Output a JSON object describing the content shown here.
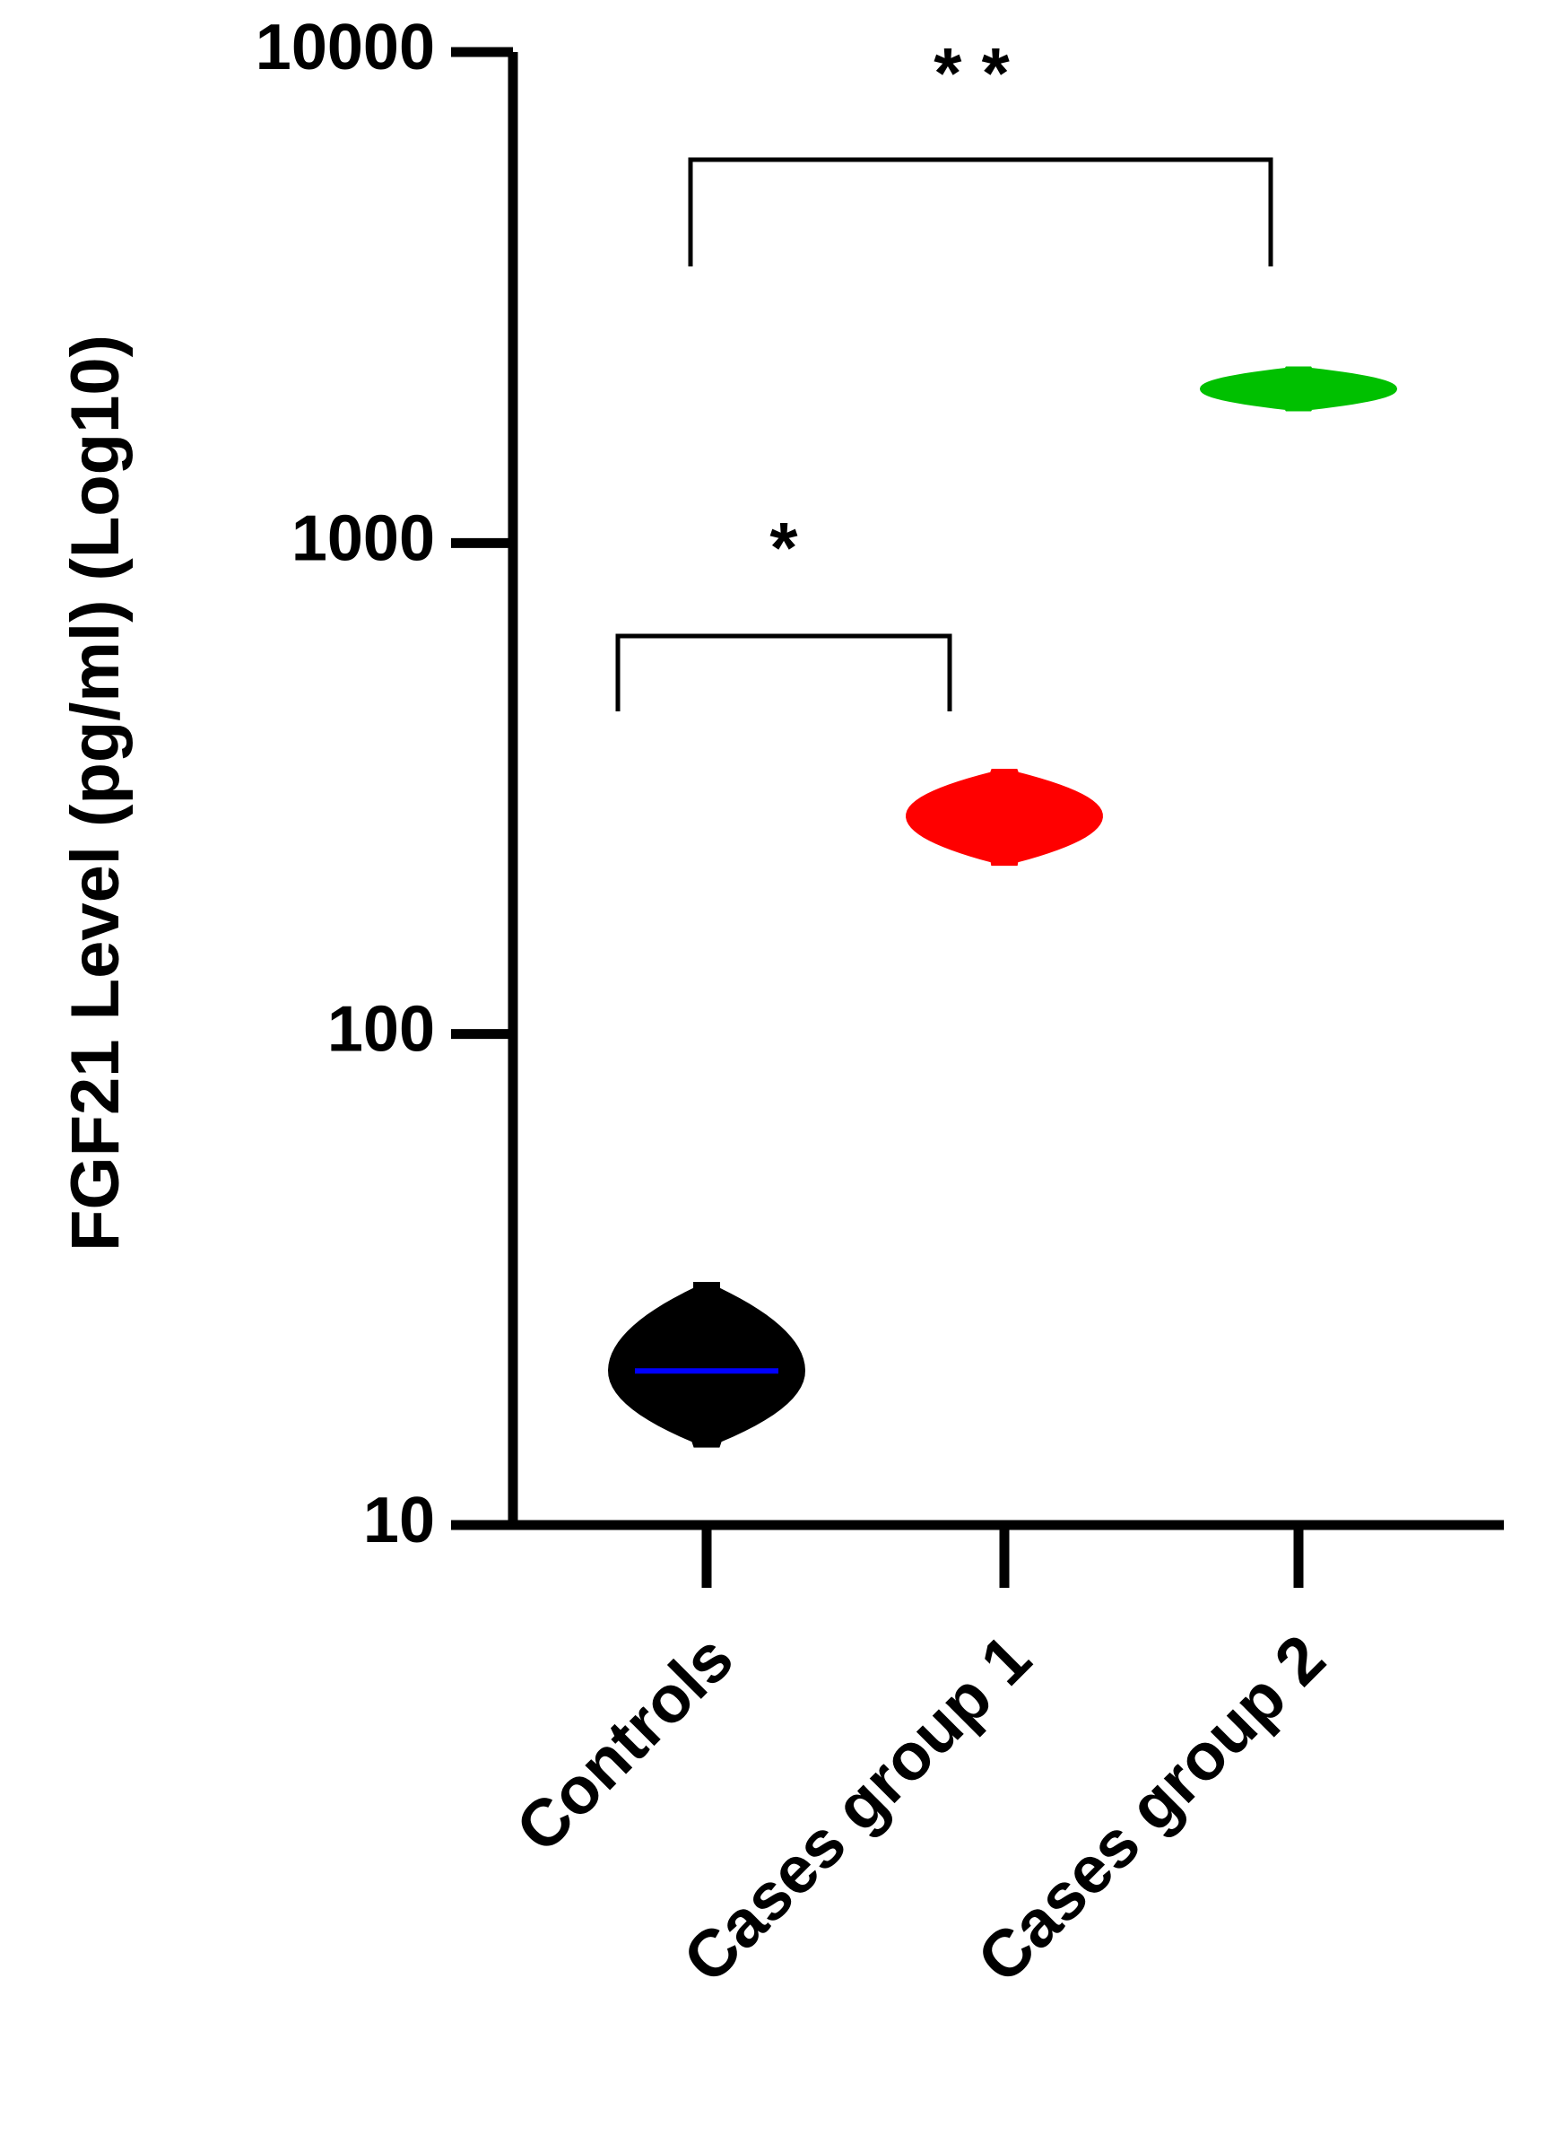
{
  "chart_data": {
    "type": "violin",
    "ylabel": "FGF21 Level (pg/ml) (Log10)",
    "categories": [
      "Controls",
      "Cases group 1",
      "Cases group 2"
    ],
    "values": [
      20.6,
      278,
      2060
    ],
    "mins": [
      14.5,
      222,
      1870
    ],
    "maxs": [
      31,
      344,
      2270
    ],
    "colors": [
      "#000000",
      "#ff0000",
      "#00c000"
    ],
    "median_colors": [
      "#0000ff",
      "#ff0000",
      "#00c000"
    ],
    "ylim": [
      10,
      10000
    ],
    "yticks": [
      10,
      100,
      1000,
      10000
    ],
    "log_scale": true,
    "grid": false,
    "comparisons": [
      {
        "label": "*",
        "between": [
          0,
          1
        ]
      },
      {
        "label": "* *",
        "between": [
          0,
          2
        ]
      }
    ]
  }
}
